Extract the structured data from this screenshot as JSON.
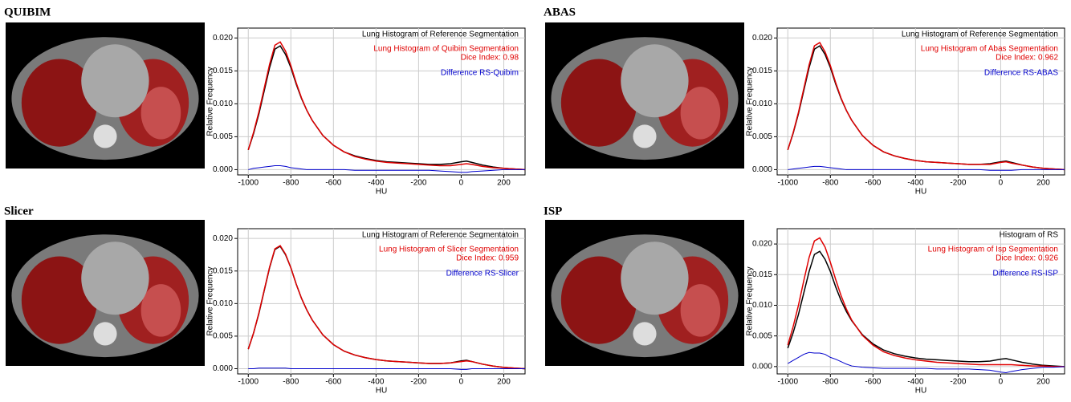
{
  "chart_data": [
    {
      "type": "line",
      "title": "QUIBIM",
      "xlabel": "HU",
      "ylabel": "Relative Frequency",
      "annotation": "Dice Index: 0.98",
      "x": [
        -1000,
        -975,
        -950,
        -925,
        -900,
        -875,
        -850,
        -825,
        -800,
        -775,
        -750,
        -725,
        -700,
        -650,
        -600,
        -550,
        -500,
        -450,
        -400,
        -350,
        -300,
        -250,
        -200,
        -150,
        -100,
        -50,
        0,
        25,
        50,
        100,
        150,
        200,
        250,
        300
      ],
      "series": [
        {
          "name": "Lung Histogram of Reference Segmentation",
          "color": "#000000",
          "values": [
            0.003,
            0.0055,
            0.0085,
            0.012,
            0.0155,
            0.0183,
            0.0188,
            0.0175,
            0.0155,
            0.013,
            0.0108,
            0.009,
            0.0075,
            0.0052,
            0.0037,
            0.0027,
            0.0021,
            0.0017,
            0.0014,
            0.0012,
            0.0011,
            0.001,
            0.0009,
            0.0008,
            0.0008,
            0.0009,
            0.0012,
            0.0013,
            0.0011,
            0.0007,
            0.0004,
            0.0002,
            0.0001,
            0
          ]
        },
        {
          "name": "Lung Histogram of Quibim Segmentation",
          "color": "#e00000",
          "values": [
            0.003,
            0.0057,
            0.0088,
            0.0124,
            0.016,
            0.0189,
            0.0194,
            0.018,
            0.0158,
            0.0132,
            0.0109,
            0.009,
            0.0075,
            0.0052,
            0.0037,
            0.0027,
            0.002,
            0.0016,
            0.0013,
            0.0011,
            0.001,
            0.0009,
            0.0008,
            0.0007,
            0.0006,
            0.0006,
            0.0008,
            0.0009,
            0.0008,
            0.0005,
            0.0003,
            0.0002,
            0.0001,
            0
          ]
        },
        {
          "name": "Difference RS-Quibim",
          "color": "#0000cc",
          "values": [
            0,
            0.0002,
            0.0003,
            0.0004,
            0.0005,
            0.0006,
            0.0006,
            0.0005,
            0.0003,
            0.0002,
            0.0001,
            0,
            0,
            0,
            0,
            0,
            -0.0001,
            -0.0001,
            -0.0001,
            -0.0001,
            -0.0001,
            -0.0001,
            -0.0001,
            -0.0001,
            -0.0002,
            -0.0003,
            -0.0004,
            -0.0004,
            -0.0003,
            -0.0002,
            -0.0001,
            0,
            0,
            0
          ]
        }
      ],
      "xlim": [
        -1050,
        300
      ],
      "xticks": [
        -1000,
        -800,
        -600,
        -400,
        -200,
        0,
        200
      ],
      "ylim": [
        -0.0008,
        0.0215
      ],
      "yticks": [
        {
          "value": 0,
          "label": "0.000"
        },
        {
          "value": 0.005,
          "label": "0.005"
        },
        {
          "value": 0.01,
          "label": "0.010"
        },
        {
          "value": 0.015,
          "label": "0.015"
        },
        {
          "value": 0.02,
          "label": "0.020"
        }
      ],
      "grid": true
    },
    {
      "type": "line",
      "title": "ABAS",
      "xlabel": "HU",
      "ylabel": "Relative Frequency",
      "annotation": "Dice Index: 0.962",
      "x": [
        -1000,
        -975,
        -950,
        -925,
        -900,
        -875,
        -850,
        -825,
        -800,
        -775,
        -750,
        -725,
        -700,
        -650,
        -600,
        -550,
        -500,
        -450,
        -400,
        -350,
        -300,
        -250,
        -200,
        -150,
        -100,
        -50,
        0,
        25,
        50,
        100,
        150,
        200,
        250,
        300
      ],
      "series": [
        {
          "name": "Lung Histogram of Reference Segmentation",
          "color": "#000000",
          "values": [
            0.003,
            0.0055,
            0.0085,
            0.012,
            0.0155,
            0.0183,
            0.0188,
            0.0175,
            0.0155,
            0.013,
            0.0108,
            0.009,
            0.0075,
            0.0052,
            0.0037,
            0.0027,
            0.0021,
            0.0017,
            0.0014,
            0.0012,
            0.0011,
            0.001,
            0.0009,
            0.0008,
            0.0008,
            0.0009,
            0.0012,
            0.0013,
            0.0011,
            0.0007,
            0.0004,
            0.0002,
            0.0001,
            0
          ]
        },
        {
          "name": "Lung Histogram of Abas Segmentation",
          "color": "#e00000",
          "values": [
            0.003,
            0.0056,
            0.0087,
            0.0123,
            0.0159,
            0.0188,
            0.0193,
            0.0179,
            0.0158,
            0.0132,
            0.0109,
            0.009,
            0.0075,
            0.0052,
            0.0037,
            0.0027,
            0.0021,
            0.0017,
            0.0014,
            0.0012,
            0.0011,
            0.001,
            0.0009,
            0.0008,
            0.0008,
            0.0008,
            0.0011,
            0.0012,
            0.001,
            0.0007,
            0.0004,
            0.0002,
            0.0001,
            0
          ]
        },
        {
          "name": "Difference RS-ABAS",
          "color": "#0000cc",
          "values": [
            0,
            0.0001,
            0.0002,
            0.0003,
            0.0004,
            0.0005,
            0.0005,
            0.0004,
            0.0003,
            0.0002,
            0.0001,
            0,
            0,
            0,
            0,
            0,
            0,
            0,
            0,
            0,
            0,
            0,
            0,
            0,
            0,
            -0.0001,
            -0.0001,
            -0.0001,
            -0.0001,
            0,
            0,
            0,
            0,
            0
          ]
        }
      ],
      "xlim": [
        -1050,
        300
      ],
      "xticks": [
        -1000,
        -800,
        -600,
        -400,
        -200,
        0,
        200
      ],
      "ylim": [
        -0.0008,
        0.0215
      ],
      "yticks": [
        {
          "value": 0,
          "label": "0.000"
        },
        {
          "value": 0.005,
          "label": "0.005"
        },
        {
          "value": 0.01,
          "label": "0.010"
        },
        {
          "value": 0.015,
          "label": "0.015"
        },
        {
          "value": 0.02,
          "label": "0.020"
        }
      ],
      "grid": true
    },
    {
      "type": "line",
      "title": "Slicer",
      "xlabel": "HU",
      "ylabel": "Relative Frequency",
      "annotation": "Dice Index: 0.959",
      "x": [
        -1000,
        -975,
        -950,
        -925,
        -900,
        -875,
        -850,
        -825,
        -800,
        -775,
        -750,
        -725,
        -700,
        -650,
        -600,
        -550,
        -500,
        -450,
        -400,
        -350,
        -300,
        -250,
        -200,
        -150,
        -100,
        -50,
        0,
        25,
        50,
        100,
        150,
        200,
        250,
        300
      ],
      "series": [
        {
          "name": "Lung Histogram of Reference Segmentatoin",
          "color": "#000000",
          "values": [
            0.003,
            0.0055,
            0.0085,
            0.012,
            0.0155,
            0.0183,
            0.0188,
            0.0175,
            0.0155,
            0.013,
            0.0108,
            0.009,
            0.0075,
            0.0052,
            0.0037,
            0.0027,
            0.0021,
            0.0017,
            0.0014,
            0.0012,
            0.0011,
            0.001,
            0.0009,
            0.0008,
            0.0008,
            0.0009,
            0.0012,
            0.0013,
            0.0011,
            0.0007,
            0.0004,
            0.0002,
            0.0001,
            0
          ]
        },
        {
          "name": "Lung Histogram of Slicer Segmentation",
          "color": "#e00000",
          "values": [
            0.003,
            0.0055,
            0.0086,
            0.0121,
            0.0156,
            0.0184,
            0.0189,
            0.0176,
            0.0155,
            0.013,
            0.0108,
            0.009,
            0.0075,
            0.0052,
            0.0037,
            0.0027,
            0.0021,
            0.0017,
            0.0014,
            0.0012,
            0.0011,
            0.001,
            0.0009,
            0.0008,
            0.0008,
            0.0009,
            0.0011,
            0.0012,
            0.0011,
            0.0007,
            0.0004,
            0.0002,
            0.0001,
            0
          ]
        },
        {
          "name": "Difference RS-Slicer",
          "color": "#0000cc",
          "values": [
            0,
            0,
            0.0001,
            0.0001,
            0.0001,
            0.0001,
            0.0001,
            0.0001,
            0,
            0,
            0,
            0,
            0,
            0,
            0,
            0,
            0,
            0,
            0,
            0,
            0,
            0,
            0,
            0,
            0,
            0,
            -0.0001,
            -0.0001,
            0,
            0,
            0,
            0,
            0,
            0
          ]
        }
      ],
      "xlim": [
        -1050,
        300
      ],
      "xticks": [
        -1000,
        -800,
        -600,
        -400,
        -200,
        0,
        200
      ],
      "ylim": [
        -0.0008,
        0.0215
      ],
      "yticks": [
        {
          "value": 0,
          "label": "0.000"
        },
        {
          "value": 0.005,
          "label": "0.005"
        },
        {
          "value": 0.01,
          "label": "0.010"
        },
        {
          "value": 0.015,
          "label": "0.015"
        },
        {
          "value": 0.02,
          "label": "0.020"
        }
      ],
      "grid": true
    },
    {
      "type": "line",
      "title": "ISP",
      "xlabel": "HU",
      "ylabel": "Relative Frequency",
      "annotation": "Dice Index: 0.926",
      "x": [
        -1000,
        -975,
        -950,
        -925,
        -900,
        -875,
        -850,
        -825,
        -800,
        -775,
        -750,
        -725,
        -700,
        -650,
        -600,
        -550,
        -500,
        -450,
        -400,
        -350,
        -300,
        -250,
        -200,
        -150,
        -100,
        -50,
        0,
        25,
        50,
        100,
        150,
        200,
        250,
        300
      ],
      "series": [
        {
          "name": "Histogram of RS",
          "color": "#000000",
          "values": [
            0.003,
            0.0055,
            0.0085,
            0.012,
            0.0155,
            0.0183,
            0.0188,
            0.0175,
            0.0155,
            0.013,
            0.0108,
            0.009,
            0.0075,
            0.0052,
            0.0037,
            0.0027,
            0.0021,
            0.0017,
            0.0014,
            0.0012,
            0.0011,
            0.001,
            0.0009,
            0.0008,
            0.0008,
            0.0009,
            0.0012,
            0.0013,
            0.0011,
            0.0007,
            0.0004,
            0.0002,
            0.0001,
            0
          ]
        },
        {
          "name": "Lung Histogram of Isp Segmentation",
          "color": "#e00000",
          "values": [
            0.0035,
            0.0065,
            0.01,
            0.014,
            0.0178,
            0.0205,
            0.021,
            0.0195,
            0.017,
            0.0142,
            0.0116,
            0.0094,
            0.0076,
            0.0051,
            0.0035,
            0.0024,
            0.0018,
            0.0014,
            0.0011,
            0.0009,
            0.0007,
            0.0006,
            0.0005,
            0.0004,
            0.0003,
            0.0003,
            0.0003,
            0.0003,
            0.0003,
            0.0002,
            0.0001,
            0.0001,
            0,
            0
          ]
        },
        {
          "name": "Difference RS-ISP",
          "color": "#0000cc",
          "values": [
            0.0005,
            0.001,
            0.0015,
            0.002,
            0.0023,
            0.0022,
            0.0022,
            0.002,
            0.0015,
            0.0012,
            0.0008,
            0.0004,
            0.0001,
            -0.0001,
            -0.0002,
            -0.0003,
            -0.0003,
            -0.0003,
            -0.0003,
            -0.0003,
            -0.0004,
            -0.0004,
            -0.0004,
            -0.0004,
            -0.0005,
            -0.0006,
            -0.0009,
            -0.001,
            -0.0008,
            -0.0005,
            -0.0003,
            -0.0001,
            -0.0001,
            0
          ]
        }
      ],
      "xlim": [
        -1050,
        300
      ],
      "xticks": [
        -1000,
        -800,
        -600,
        -400,
        -200,
        0,
        200
      ],
      "ylim": [
        -0.0012,
        0.0225
      ],
      "yticks": [
        {
          "value": 0,
          "label": "0.000"
        },
        {
          "value": 0.005,
          "label": "0.005"
        },
        {
          "value": 0.01,
          "label": "0.010"
        },
        {
          "value": 0.015,
          "label": "0.015"
        },
        {
          "value": 0.02,
          "label": "0.020"
        }
      ],
      "grid": true
    }
  ]
}
